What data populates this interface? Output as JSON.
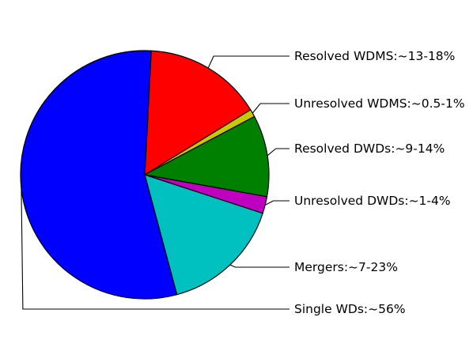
{
  "chart_data": {
    "type": "pie",
    "start_angle_deg": 87,
    "direction": "clockwise",
    "legend": "none",
    "slices": [
      {
        "label": "Resolved WDMS:~13-18%",
        "value": 15.4,
        "color": "#ff0000"
      },
      {
        "label": "Unresolved WDMS:~0.5-1%",
        "value": 1.0,
        "color": "#c8c800"
      },
      {
        "label": "Resolved DWDs:~9-14%",
        "value": 10.6,
        "color": "#008000"
      },
      {
        "label": "Unresolved DWDs:~1-4%",
        "value": 2.2,
        "color": "#c000c0"
      },
      {
        "label": "Mergers:~7-23%",
        "value": 15.8,
        "color": "#00c0c0"
      },
      {
        "label": "Single WDs:~56%",
        "value": 55.0,
        "color": "#0000ff"
      }
    ]
  }
}
